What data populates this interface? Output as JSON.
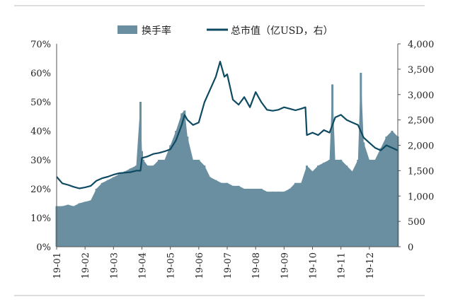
{
  "chart_data": {
    "type": "bar+line",
    "legend": [
      {
        "name": "换手率",
        "kind": "bar"
      },
      {
        "name": "总市值（亿USD，右）",
        "kind": "line"
      }
    ],
    "left_axis": {
      "min": 0,
      "max": 70,
      "unit": "%",
      "ticks": [
        "0%",
        "10%",
        "20%",
        "30%",
        "40%",
        "50%",
        "60%",
        "70%"
      ]
    },
    "right_axis": {
      "min": 0,
      "max": 4000,
      "ticks": [
        "0",
        "500",
        "1,000",
        "1,500",
        "2,000",
        "2,500",
        "3,000",
        "3,500",
        "4,000"
      ]
    },
    "x_ticks": [
      "19-01",
      "19-02",
      "19-03",
      "19-04",
      "19-05",
      "19-06",
      "19-07",
      "19-08",
      "19-09",
      "19-10",
      "19-11",
      "19-12"
    ],
    "x_domain": {
      "start_month": 1,
      "end_month": 13
    },
    "turnover_series": {
      "name": "换手率",
      "month_positions": [
        1.0,
        1.2,
        1.4,
        1.6,
        1.8,
        2.0,
        2.2,
        2.4,
        2.6,
        2.8,
        3.0,
        3.2,
        3.4,
        3.6,
        3.8,
        3.95,
        4.0,
        4.05,
        4.2,
        4.4,
        4.6,
        4.8,
        5.0,
        5.2,
        5.4,
        5.5,
        5.6,
        5.8,
        6.0,
        6.2,
        6.4,
        6.6,
        6.8,
        7.0,
        7.2,
        7.4,
        7.6,
        7.8,
        8.0,
        8.2,
        8.4,
        8.6,
        8.8,
        9.0,
        9.2,
        9.4,
        9.6,
        9.8,
        10.0,
        10.2,
        10.4,
        10.6,
        10.7,
        10.8,
        11.0,
        11.2,
        11.4,
        11.6,
        11.7,
        11.8,
        12.0,
        12.2,
        12.4,
        12.6,
        12.8,
        13.0
      ],
      "values": [
        14,
        14,
        14.5,
        14,
        15,
        15.5,
        16,
        20,
        22,
        23,
        24,
        25,
        26,
        27,
        28,
        50,
        33,
        30,
        28,
        28,
        30,
        30,
        35,
        40,
        46,
        47,
        38,
        30,
        30,
        28,
        24,
        23,
        22,
        22,
        21,
        21,
        20,
        20,
        20,
        20,
        19,
        19,
        19,
        19,
        20,
        22,
        22,
        28,
        26,
        28,
        29,
        30,
        56,
        30,
        30,
        28,
        26,
        30,
        60,
        36,
        30,
        30,
        34,
        38,
        40,
        38
      ]
    },
    "market_cap_series": {
      "name": "总市值（亿USD，右）",
      "month_positions": [
        1.0,
        1.2,
        1.4,
        1.6,
        1.8,
        2.0,
        2.2,
        2.4,
        2.6,
        2.8,
        3.0,
        3.2,
        3.4,
        3.6,
        3.8,
        3.95,
        4.0,
        4.2,
        4.4,
        4.6,
        4.8,
        5.0,
        5.2,
        5.4,
        5.5,
        5.6,
        5.8,
        6.0,
        6.2,
        6.4,
        6.6,
        6.75,
        6.9,
        7.0,
        7.2,
        7.4,
        7.6,
        7.8,
        8.0,
        8.2,
        8.4,
        8.6,
        8.8,
        9.0,
        9.2,
        9.4,
        9.6,
        9.75,
        9.8,
        10.0,
        10.2,
        10.4,
        10.6,
        10.8,
        11.0,
        11.2,
        11.4,
        11.6,
        11.8,
        12.0,
        12.2,
        12.4,
        12.6,
        12.8,
        13.0
      ],
      "values": [
        1380,
        1250,
        1220,
        1180,
        1150,
        1170,
        1200,
        1300,
        1350,
        1380,
        1420,
        1450,
        1460,
        1470,
        1500,
        1500,
        1750,
        1780,
        1830,
        1850,
        1880,
        1920,
        2100,
        2400,
        2600,
        2500,
        2400,
        2450,
        2850,
        3100,
        3350,
        3650,
        3350,
        3400,
        2900,
        2800,
        2950,
        2750,
        3050,
        2850,
        2700,
        2680,
        2700,
        2750,
        2720,
        2690,
        2720,
        2750,
        2200,
        2250,
        2200,
        2300,
        2250,
        2550,
        2600,
        2500,
        2450,
        2400,
        2150,
        2050,
        1950,
        1900,
        2000,
        1950,
        1900
      ]
    }
  }
}
